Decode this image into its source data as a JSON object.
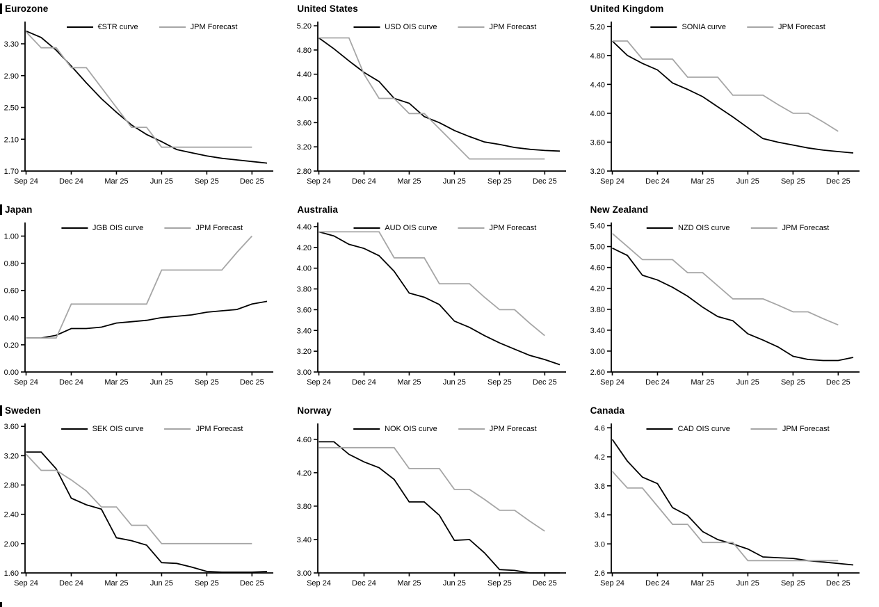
{
  "x_axis": {
    "tick_labels": [
      "Sep 24",
      "Dec 24",
      "Mar 25",
      "Jun 25",
      "Sep 25",
      "Dec 25"
    ],
    "tick_months": [
      0,
      3,
      6,
      9,
      12,
      15
    ],
    "months_total": 16
  },
  "colors": {
    "market_line": "#000000",
    "forecast_line": "#a6a6a6",
    "axis": "#000000",
    "text": "#000000"
  },
  "chart_data": [
    {
      "type": "line",
      "title": "Eurozone",
      "legend_position": "top-center",
      "gridlines": false,
      "ylim": [
        1.7,
        3.58
      ],
      "y_tick_values": [
        3.3,
        2.9,
        2.5,
        2.1,
        1.7
      ],
      "y_tick_labels": [
        "3.30",
        "2.90",
        "2.50",
        "2.10",
        "1.70"
      ],
      "series": [
        {
          "name": "€STR curve",
          "role": "market",
          "values": [
            3.46,
            3.38,
            3.22,
            3.02,
            2.81,
            2.61,
            2.44,
            2.28,
            2.16,
            2.07,
            1.97,
            1.93,
            1.89,
            1.86,
            1.84,
            1.82,
            1.8
          ]
        },
        {
          "name": "JPM Forecast",
          "role": "forecast",
          "values": [
            3.45,
            3.25,
            3.25,
            3.0,
            3.0,
            2.75,
            2.5,
            2.25,
            2.25,
            2.0,
            2.0,
            2.0,
            2.0,
            2.0,
            2.0,
            2.0
          ]
        }
      ]
    },
    {
      "type": "line",
      "title": "United States",
      "legend_position": "top-center",
      "gridlines": false,
      "ylim": [
        2.8,
        5.27
      ],
      "y_tick_values": [
        5.2,
        4.8,
        4.4,
        4.0,
        3.6,
        3.2,
        2.8
      ],
      "y_tick_labels": [
        "5.20",
        "4.80",
        "4.40",
        "4.00",
        "3.60",
        "3.20",
        "2.80"
      ],
      "series": [
        {
          "name": "USD OIS curve",
          "role": "market",
          "values": [
            5.0,
            4.82,
            4.62,
            4.43,
            4.28,
            4.0,
            3.92,
            3.7,
            3.6,
            3.47,
            3.37,
            3.28,
            3.24,
            3.19,
            3.16,
            3.14,
            3.13
          ]
        },
        {
          "name": "JPM Forecast",
          "role": "forecast",
          "values": [
            5.0,
            5.0,
            5.0,
            4.4,
            4.0,
            4.0,
            3.75,
            3.75,
            3.5,
            3.25,
            3.0,
            3.0,
            3.0,
            3.0,
            3.0,
            3.0
          ]
        }
      ]
    },
    {
      "type": "line",
      "title": "United Kingdom",
      "legend_position": "top-center",
      "gridlines": false,
      "ylim": [
        3.2,
        5.27
      ],
      "y_tick_values": [
        5.2,
        4.8,
        4.4,
        4.0,
        3.6,
        3.2
      ],
      "y_tick_labels": [
        "5.20",
        "4.80",
        "4.40",
        "4.00",
        "3.60",
        "3.20"
      ],
      "series": [
        {
          "name": "SONIA curve",
          "role": "market",
          "values": [
            5.0,
            4.8,
            4.69,
            4.6,
            4.42,
            4.33,
            4.23,
            4.09,
            3.95,
            3.8,
            3.65,
            3.6,
            3.56,
            3.52,
            3.49,
            3.47,
            3.45
          ]
        },
        {
          "name": "JPM Forecast",
          "role": "forecast",
          "values": [
            5.0,
            5.0,
            4.75,
            4.75,
            4.75,
            4.5,
            4.5,
            4.5,
            4.25,
            4.25,
            4.25,
            4.12,
            4.0,
            4.0,
            3.88,
            3.75
          ]
        }
      ]
    },
    {
      "type": "line",
      "title": "Japan",
      "legend_position": "top-center",
      "gridlines": false,
      "ylim": [
        0.0,
        1.1
      ],
      "y_tick_values": [
        1.0,
        0.8,
        0.6,
        0.4,
        0.2,
        0.0
      ],
      "y_tick_labels": [
        "1.00",
        "0.80",
        "0.60",
        "0.40",
        "0.20",
        "0.00"
      ],
      "series": [
        {
          "name": "JGB OIS curve",
          "role": "market",
          "values": [
            0.25,
            0.25,
            0.27,
            0.32,
            0.32,
            0.33,
            0.36,
            0.37,
            0.38,
            0.4,
            0.41,
            0.42,
            0.44,
            0.45,
            0.46,
            0.5,
            0.52
          ]
        },
        {
          "name": "JPM Forecast",
          "role": "forecast",
          "values": [
            0.25,
            0.25,
            0.25,
            0.5,
            0.5,
            0.5,
            0.5,
            0.5,
            0.5,
            0.75,
            0.75,
            0.75,
            0.75,
            0.75,
            0.88,
            1.0
          ]
        }
      ]
    },
    {
      "type": "line",
      "title": "Australia",
      "legend_position": "top-center",
      "gridlines": false,
      "ylim": [
        3.0,
        4.44
      ],
      "y_tick_values": [
        4.4,
        4.2,
        4.0,
        3.8,
        3.6,
        3.4,
        3.2,
        3.0
      ],
      "y_tick_labels": [
        "4.40",
        "4.20",
        "4.00",
        "3.80",
        "3.60",
        "3.40",
        "3.20",
        "3.00"
      ],
      "series": [
        {
          "name": "AUD OIS curve",
          "role": "market",
          "values": [
            4.35,
            4.31,
            4.23,
            4.19,
            4.12,
            3.97,
            3.76,
            3.72,
            3.65,
            3.49,
            3.43,
            3.35,
            3.28,
            3.22,
            3.16,
            3.12,
            3.07
          ]
        },
        {
          "name": "JPM Forecast",
          "role": "forecast",
          "values": [
            4.35,
            4.35,
            4.35,
            4.35,
            4.35,
            4.1,
            4.1,
            4.1,
            3.85,
            3.85,
            3.85,
            3.72,
            3.6,
            3.6,
            3.47,
            3.35
          ]
        }
      ]
    },
    {
      "type": "line",
      "title": "New Zealand",
      "legend_position": "top-center",
      "gridlines": false,
      "ylim": [
        2.6,
        5.46
      ],
      "y_tick_values": [
        5.4,
        5.0,
        4.6,
        4.2,
        3.8,
        3.4,
        3.0,
        2.6
      ],
      "y_tick_labels": [
        "5.40",
        "5.00",
        "4.60",
        "4.20",
        "3.80",
        "3.40",
        "3.00",
        "2.60"
      ],
      "series": [
        {
          "name": "NZD OIS curve",
          "role": "market",
          "values": [
            4.97,
            4.83,
            4.45,
            4.36,
            4.22,
            4.05,
            3.84,
            3.66,
            3.58,
            3.33,
            3.21,
            3.08,
            2.9,
            2.84,
            2.82,
            2.82,
            2.88
          ]
        },
        {
          "name": "JPM Forecast",
          "role": "forecast",
          "values": [
            5.25,
            5.0,
            4.75,
            4.75,
            4.75,
            4.5,
            4.5,
            4.25,
            4.0,
            4.0,
            4.0,
            3.88,
            3.75,
            3.75,
            3.62,
            3.5
          ]
        }
      ]
    },
    {
      "type": "line",
      "title": "Sweden",
      "legend_position": "top-center",
      "gridlines": false,
      "ylim": [
        1.6,
        3.64
      ],
      "y_tick_values": [
        3.6,
        3.2,
        2.8,
        2.4,
        2.0,
        1.6
      ],
      "y_tick_labels": [
        "3.60",
        "3.20",
        "2.80",
        "2.40",
        "2.00",
        "1.60"
      ],
      "series": [
        {
          "name": "SEK OIS curve",
          "role": "market",
          "values": [
            3.25,
            3.25,
            3.02,
            2.62,
            2.53,
            2.47,
            2.08,
            2.04,
            1.98,
            1.74,
            1.73,
            1.68,
            1.62,
            1.61,
            1.61,
            1.61,
            1.62
          ]
        },
        {
          "name": "JPM Forecast",
          "role": "forecast",
          "values": [
            3.22,
            3.0,
            3.0,
            2.87,
            2.72,
            2.5,
            2.5,
            2.25,
            2.25,
            2.0,
            2.0,
            2.0,
            2.0,
            2.0,
            2.0,
            2.0
          ]
        }
      ]
    },
    {
      "type": "line",
      "title": "Norway",
      "legend_position": "top-center",
      "gridlines": false,
      "ylim": [
        3.0,
        4.79
      ],
      "y_tick_values": [
        4.6,
        4.2,
        3.8,
        3.4,
        3.0
      ],
      "y_tick_labels": [
        "4.60",
        "4.20",
        "3.80",
        "3.40",
        "3.00"
      ],
      "series": [
        {
          "name": "NOK OIS curve",
          "role": "market",
          "values": [
            4.57,
            4.57,
            4.42,
            4.33,
            4.26,
            4.12,
            3.85,
            3.85,
            3.69,
            3.39,
            3.4,
            3.24,
            3.04,
            3.03,
            3.0,
            3.0,
            3.0
          ]
        },
        {
          "name": "JPM Forecast",
          "role": "forecast",
          "values": [
            4.5,
            4.5,
            4.5,
            4.5,
            4.5,
            4.5,
            4.25,
            4.25,
            4.25,
            4.0,
            4.0,
            3.88,
            3.75,
            3.75,
            3.62,
            3.5
          ]
        }
      ]
    },
    {
      "type": "line",
      "title": "Canada",
      "legend_position": "top-center",
      "gridlines": false,
      "ylim": [
        2.6,
        4.66
      ],
      "y_tick_values": [
        4.6,
        4.2,
        3.8,
        3.4,
        3.0,
        2.6
      ],
      "y_tick_labels": [
        "4.6",
        "4.2",
        "3.8",
        "3.4",
        "3.0",
        "2.6"
      ],
      "series": [
        {
          "name": "CAD OIS curve",
          "role": "market",
          "values": [
            4.44,
            4.14,
            3.92,
            3.83,
            3.5,
            3.39,
            3.17,
            3.06,
            3.0,
            2.93,
            2.82,
            2.81,
            2.8,
            2.77,
            2.75,
            2.73,
            2.71
          ]
        },
        {
          "name": "JPM Forecast",
          "role": "forecast",
          "values": [
            4.0,
            3.77,
            3.77,
            3.52,
            3.27,
            3.27,
            3.02,
            3.02,
            3.02,
            2.77,
            2.77,
            2.77,
            2.77,
            2.77,
            2.77,
            2.77
          ]
        }
      ]
    }
  ]
}
